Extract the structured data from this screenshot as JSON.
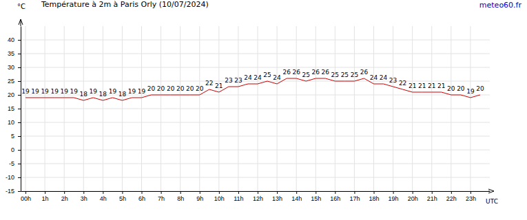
{
  "chart_data": {
    "type": "line",
    "title": "Température à 2m à Paris Orly (10/07/2024)",
    "source": "meteo60.fr",
    "y_label": "°C",
    "x_label": "UTC",
    "x": [
      0,
      0.5,
      1,
      1.5,
      2,
      2.5,
      3,
      3.5,
      4,
      4.5,
      5,
      5.5,
      6,
      6.5,
      7,
      7.5,
      8,
      8.5,
      9,
      9.5,
      10,
      10.5,
      11,
      11.5,
      12,
      12.5,
      13,
      13.5,
      14,
      14.5,
      15,
      15.5,
      16,
      16.5,
      17,
      17.5,
      18,
      18.5,
      19,
      19.5,
      20,
      20.5,
      21,
      21.5,
      22,
      22.5,
      23,
      23.5
    ],
    "values": [
      19,
      19,
      19,
      19,
      19,
      19,
      18,
      19,
      18,
      19,
      18,
      19,
      19,
      20,
      20,
      20,
      20,
      20,
      20,
      22,
      21,
      23,
      23,
      24,
      24,
      25,
      24,
      26,
      26,
      25,
      26,
      26,
      25,
      25,
      25,
      26,
      24,
      24,
      23,
      22,
      21,
      21,
      21,
      21,
      20,
      20,
      19,
      20
    ],
    "color": "#cc0000",
    "xlim": [
      -0.25,
      24
    ],
    "xticks": [
      {
        "value": 0,
        "label": "00h"
      },
      {
        "value": 1,
        "label": "1h"
      },
      {
        "value": 2,
        "label": "2h"
      },
      {
        "value": 3,
        "label": "3h"
      },
      {
        "value": 4,
        "label": "4h"
      },
      {
        "value": 5,
        "label": "5h"
      },
      {
        "value": 6,
        "label": "6h"
      },
      {
        "value": 7,
        "label": "7h"
      },
      {
        "value": 8,
        "label": "8h"
      },
      {
        "value": 9,
        "label": "9h"
      },
      {
        "value": 10,
        "label": "10h"
      },
      {
        "value": 11,
        "label": "11h"
      },
      {
        "value": 12,
        "label": "12h"
      },
      {
        "value": 13,
        "label": "13h"
      },
      {
        "value": 14,
        "label": "14h"
      },
      {
        "value": 15,
        "label": "15h"
      },
      {
        "value": 16,
        "label": "16h"
      },
      {
        "value": 17,
        "label": "17h"
      },
      {
        "value": 18,
        "label": "18h"
      },
      {
        "value": 19,
        "label": "19h"
      },
      {
        "value": 20,
        "label": "20h"
      },
      {
        "value": 21,
        "label": "21h"
      },
      {
        "value": 22,
        "label": "22h"
      },
      {
        "value": 23,
        "label": "23h"
      }
    ],
    "ylim": [
      -15,
      45
    ],
    "yticks": [
      -15,
      -10,
      -5,
      0,
      5,
      10,
      15,
      20,
      25,
      30,
      35,
      40
    ],
    "grid": true,
    "data_labels": true
  }
}
